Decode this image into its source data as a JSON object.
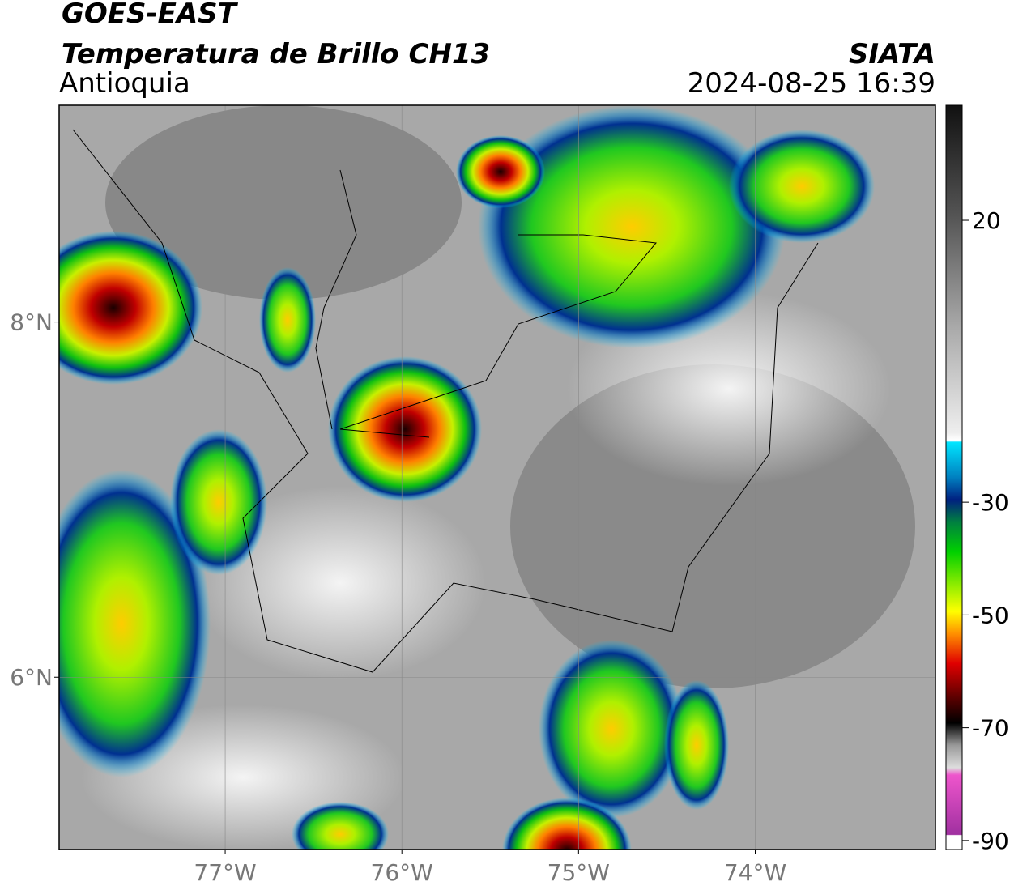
{
  "header": {
    "satellite": "GOES-EAST",
    "product": "Temperatura de Brillo CH13",
    "region": "Antioquia",
    "agency": "SIATA",
    "datetime": "2024-08-25 16:39"
  },
  "map": {
    "lonlim": [
      -77.94,
      -72.98
    ],
    "latlim": [
      5.03,
      9.22
    ],
    "lat_ticks": [
      {
        "value": 8,
        "label": "8°N"
      },
      {
        "value": 6,
        "label": "6°N"
      }
    ],
    "lon_ticks": [
      {
        "value": -77,
        "label": "77°W"
      },
      {
        "value": -76,
        "label": "76°W"
      },
      {
        "value": -75,
        "label": "75°W"
      },
      {
        "value": -74,
        "label": "74°W"
      }
    ],
    "grid": true
  },
  "colorbar": {
    "lim": [
      -91.6,
      40.4
    ],
    "ticks": [
      20,
      -30,
      -50,
      -70,
      -90
    ]
  }
}
